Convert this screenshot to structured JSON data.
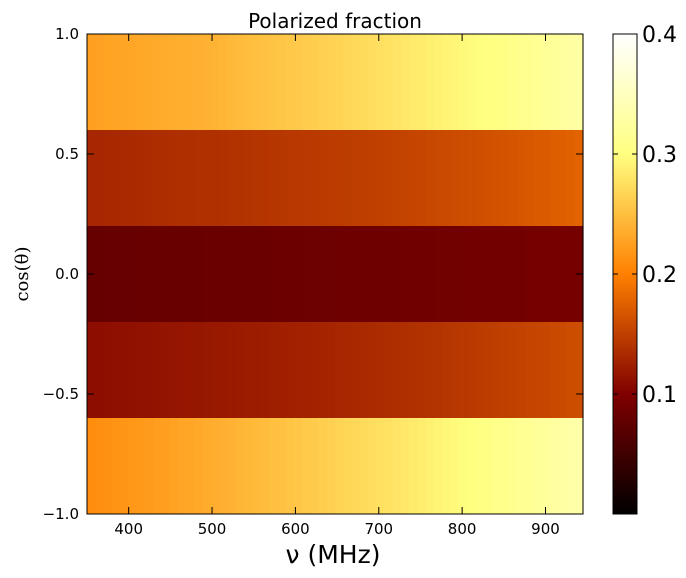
{
  "chart_data": {
    "type": "heatmap",
    "title": "Polarized fraction",
    "xlabel": "ν (MHz)",
    "ylabel": "cos(θ)",
    "xlim": [
      350,
      945
    ],
    "ylim": [
      -1.0,
      1.0
    ],
    "xticks": [
      400,
      500,
      600,
      700,
      800,
      900
    ],
    "xtick_labels": [
      "400",
      "500",
      "600",
      "700",
      "800",
      "900"
    ],
    "yticks": [
      1.0,
      0.5,
      0.0,
      -0.5,
      -1.0
    ],
    "ytick_labels": [
      "1.0",
      "0.5",
      "0.0",
      "−0.5",
      "−1.0"
    ],
    "colormap": "afmhot",
    "colorbar": {
      "vmin": 0.0,
      "vmax": 0.4,
      "ticks": [
        0.1,
        0.2,
        0.3,
        0.4
      ],
      "tick_labels": [
        "0.1",
        "0.2",
        "0.3",
        "0.4"
      ]
    },
    "x_samples": [
      350,
      400,
      450,
      500,
      550,
      600,
      650,
      700,
      750,
      800,
      850,
      900,
      945
    ],
    "bands": [
      {
        "y_range": [
          0.6,
          1.0
        ],
        "values": [
          0.225,
          0.23,
          0.235,
          0.24,
          0.25,
          0.258,
          0.266,
          0.275,
          0.285,
          0.295,
          0.305,
          0.318,
          0.33
        ]
      },
      {
        "y_range": [
          0.2,
          0.6
        ],
        "values": [
          0.13,
          0.133,
          0.136,
          0.138,
          0.141,
          0.144,
          0.147,
          0.15,
          0.155,
          0.16,
          0.165,
          0.172,
          0.178
        ]
      },
      {
        "y_range": [
          -0.2,
          0.2
        ],
        "values": [
          0.08,
          0.081,
          0.082,
          0.083,
          0.084,
          0.085,
          0.086,
          0.087,
          0.088,
          0.089,
          0.09,
          0.091,
          0.092
        ]
      },
      {
        "y_range": [
          -0.6,
          -0.2
        ],
        "values": [
          0.11,
          0.113,
          0.116,
          0.119,
          0.122,
          0.126,
          0.13,
          0.134,
          0.139,
          0.144,
          0.15,
          0.156,
          0.162
        ]
      },
      {
        "y_range": [
          -1.0,
          -0.6
        ],
        "values": [
          0.21,
          0.218,
          0.226,
          0.235,
          0.245,
          0.255,
          0.265,
          0.275,
          0.286,
          0.298,
          0.31,
          0.322,
          0.335
        ]
      }
    ]
  }
}
